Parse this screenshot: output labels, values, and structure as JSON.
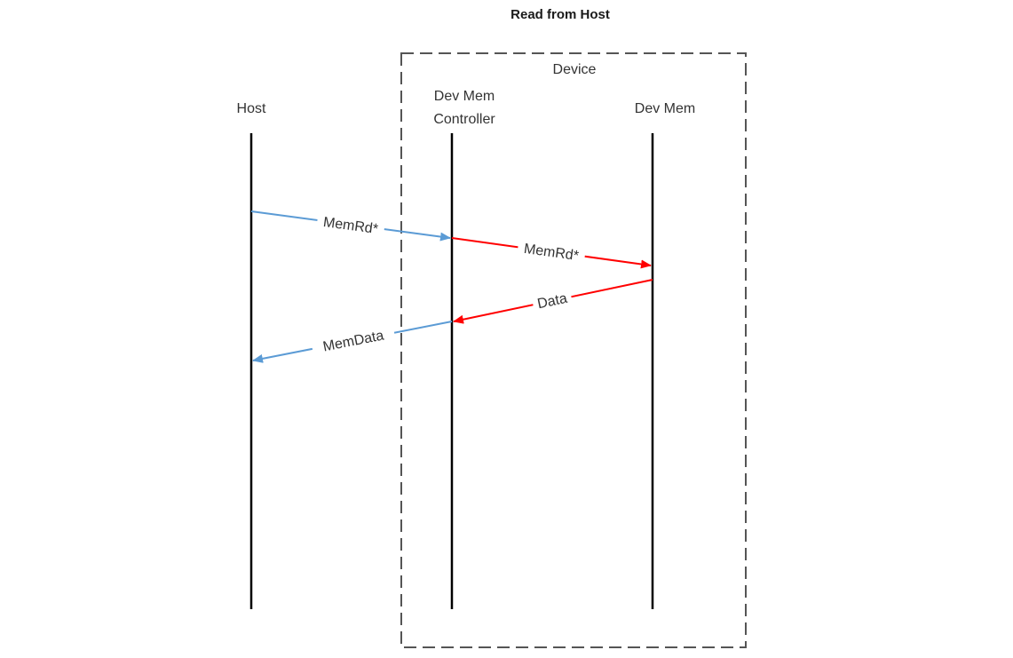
{
  "title": "Read from Host",
  "device_boundary": {
    "label": "Device"
  },
  "lifelines": [
    {
      "label_lines": [
        "Host"
      ]
    },
    {
      "label_lines": [
        "Dev Mem",
        "Controller"
      ]
    },
    {
      "label_lines": [
        "Dev Mem"
      ]
    }
  ],
  "messages": [
    {
      "label": "MemRd*",
      "color": "#5b9bd5"
    },
    {
      "label": "MemRd*",
      "color": "#ff0000"
    },
    {
      "label": "Data",
      "color": "#ff0000"
    },
    {
      "label": "MemData",
      "color": "#5b9bd5"
    }
  ],
  "colors": {
    "lifeline": "#000000",
    "host_link": "#5b9bd5",
    "device_link": "#ff0000",
    "boundary": "#555555"
  }
}
